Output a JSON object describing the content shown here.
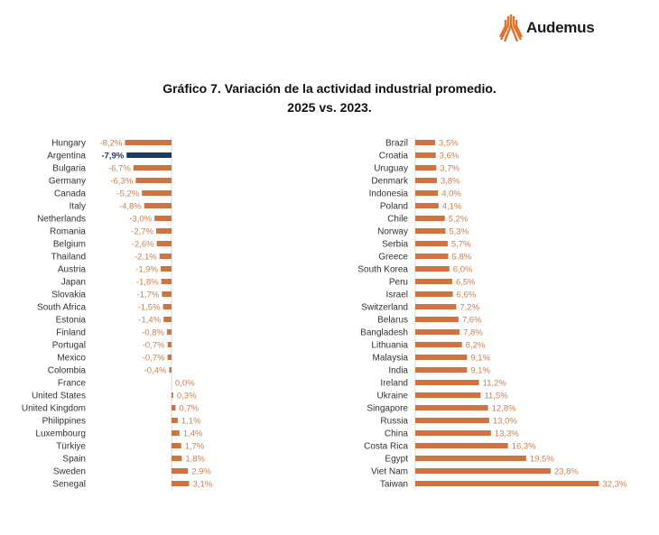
{
  "brand": {
    "name": "Audemus",
    "accent": "#e0712f"
  },
  "chart_data": {
    "type": "bar",
    "orientation": "horizontal",
    "title_line1": "Gráfico 7. Variación de la actividad industrial promedio.",
    "title_line2": "2025 vs. 2023.",
    "unit": "%",
    "bar_color": "#cf7440",
    "highlight_color": "#1f3864",
    "label_color": "#c9804f",
    "highlight": "Argentina",
    "categories": [
      "Hungary",
      "Argentina",
      "Bulgaria",
      "Germany",
      "Canada",
      "Italy",
      "Netherlands",
      "Romania",
      "Belgium",
      "Thailand",
      "Austria",
      "Japan",
      "Slovakia",
      "South Africa",
      "Estonia",
      "Finland",
      "Portugal",
      "Mexico",
      "Colombia",
      "France",
      "United States",
      "United Kingdom",
      "Philippines",
      "Luxembourg",
      "Türkiye",
      "Spain",
      "Sweden",
      "Senegal",
      "Brazil",
      "Croatia",
      "Uruguay",
      "Denmark",
      "Indonesia",
      "Poland",
      "Chile",
      "Norway",
      "Serbia",
      "Greece",
      "South Korea",
      "Peru",
      "Israel",
      "Switzerland",
      "Belarus",
      "Bangladesh",
      "Lithuania",
      "Malaysia",
      "India",
      "Ireland",
      "Ukraine",
      "Singapore",
      "Russia",
      "China",
      "Costa Rica",
      "Egypt",
      "Viet Nam",
      "Taiwan"
    ],
    "values": [
      -8.2,
      -7.9,
      -6.7,
      -6.3,
      -5.2,
      -4.8,
      -3.0,
      -2.7,
      -2.6,
      -2.1,
      -1.9,
      -1.8,
      -1.7,
      -1.5,
      -1.4,
      -0.8,
      -0.7,
      -0.7,
      -0.4,
      0.0,
      0.3,
      0.7,
      1.1,
      1.4,
      1.7,
      1.8,
      2.9,
      3.1,
      3.5,
      3.6,
      3.7,
      3.8,
      4.0,
      4.1,
      5.2,
      5.3,
      5.7,
      5.8,
      6.0,
      6.5,
      6.6,
      7.2,
      7.6,
      7.8,
      8.2,
      9.1,
      9.1,
      11.2,
      11.5,
      12.8,
      13.0,
      13.3,
      16.3,
      19.5,
      23.8,
      32.3
    ],
    "value_labels": [
      "-8,2%",
      "-7,9%",
      "-6,7%",
      "-6,3%",
      "-5,2%",
      "-4,8%",
      "-3,0%",
      "-2,7%",
      "-2,6%",
      "-2,1%",
      "-1,9%",
      "-1,8%",
      "-1,7%",
      "-1,5%",
      "-1,4%",
      "-0,8%",
      "-0,7%",
      "-0,7%",
      "-0,4%",
      "0,0%",
      "0,3%",
      "0,7%",
      "1,1%",
      "1,4%",
      "1,7%",
      "1,8%",
      "2,9%",
      "3,1%",
      "3,5%",
      "3,6%",
      "3,7%",
      "3,8%",
      "4,0%",
      "4,1%",
      "5,2%",
      "5,3%",
      "5,7%",
      "5,8%",
      "6,0%",
      "6,5%",
      "6,6%",
      "7,2%",
      "7,6%",
      "7,8%",
      "8,2%",
      "9,1%",
      "9,1%",
      "11,2%",
      "11,5%",
      "12,8%",
      "13,0%",
      "13,3%",
      "16,3%",
      "19,5%",
      "23,8%",
      "32,3%"
    ]
  }
}
